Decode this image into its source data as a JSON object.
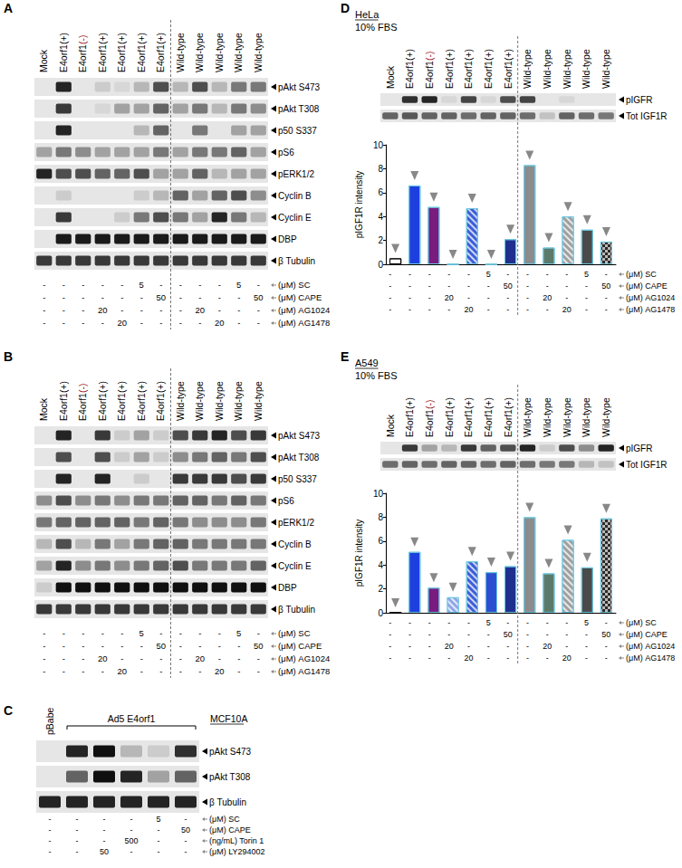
{
  "figure": {
    "panels": [
      {
        "letter": "A",
        "lanes": [
          "Mock",
          "E4orf1(+)",
          "E4orf1(-)",
          "E4orf1(+)",
          "E4orf1(+)",
          "E4orf1(+)",
          "E4orf1(+)",
          "Wild-type",
          "Wild-type",
          "Wild-type",
          "Wild-type",
          "Wild-type"
        ],
        "rows": [
          {
            "label": "pAkt S473",
            "bands": [
              0,
              0.9,
              0,
              0.1,
              0.05,
              0.2,
              0.7,
              0.2,
              0.7,
              0.2,
              0.5,
              0.5
            ]
          },
          {
            "label": "pAkt T308",
            "bands": [
              0,
              0.8,
              0,
              0.05,
              0.3,
              0.3,
              0.6,
              0.3,
              0.5,
              0.2,
              0.5,
              0.4
            ]
          },
          {
            "label": "p50 S337",
            "bands": [
              0,
              0.9,
              0,
              0,
              0,
              0.2,
              0.6,
              0,
              0.5,
              0,
              0.3,
              0.3
            ]
          },
          {
            "label": "pS6",
            "bands": [
              0.3,
              0.5,
              0.4,
              0.3,
              0.3,
              0.3,
              0.5,
              0.3,
              0.5,
              0.5,
              0.6,
              0.3
            ]
          },
          {
            "label": "pERK1/2",
            "bands": [
              0.9,
              0.7,
              0.7,
              0.6,
              0.6,
              0.7,
              0.3,
              0.3,
              0.6,
              0.2,
              0.3,
              0.3
            ]
          },
          {
            "label": "Cyclin B",
            "bands": [
              0,
              0.1,
              0,
              0,
              0,
              0.1,
              0.2,
              0.6,
              0.3,
              0.6,
              0.7,
              0.4
            ]
          },
          {
            "label": "Cyclin E",
            "bands": [
              0,
              0.8,
              0,
              0,
              0.1,
              0.5,
              0.7,
              0.5,
              0.3,
              0.9,
              0.5,
              0.2
            ]
          },
          {
            "label": "DBP",
            "bands": [
              0,
              0.95,
              0.95,
              0.95,
              0.95,
              0.95,
              0.95,
              0.95,
              0.95,
              0.95,
              0.95,
              0.95
            ]
          },
          {
            "label": "β Tubulin",
            "bands": [
              0.8,
              0.8,
              0.8,
              0.8,
              0.8,
              0.8,
              0.8,
              0.8,
              0.8,
              0.8,
              0.8,
              0.8
            ]
          }
        ],
        "treatments": [
          {
            "label": "(μM) SC",
            "values": [
              "-",
              "-",
              "-",
              "-",
              "-",
              "5",
              "-",
              "-",
              "-",
              "-",
              "5",
              "-"
            ]
          },
          {
            "label": "(μM) CAPE",
            "values": [
              "-",
              "-",
              "-",
              "-",
              "-",
              "-",
              "50",
              "-",
              "-",
              "-",
              "-",
              "50"
            ]
          },
          {
            "label": "(μM) AG1024",
            "values": [
              "-",
              "-",
              "-",
              "20",
              "-",
              "-",
              "-",
              "-",
              "20",
              "-",
              "-",
              "-"
            ]
          },
          {
            "label": "(μM) AG1478",
            "values": [
              "-",
              "-",
              "-",
              "-",
              "20",
              "-",
              "-",
              "-",
              "-",
              "20",
              "-",
              "-"
            ]
          }
        ]
      },
      {
        "letter": "B",
        "lanes": [
          "Mock",
          "E4orf1(+)",
          "E4orf1(-)",
          "E4orf1(+)",
          "E4orf1(+)",
          "E4orf1(+)",
          "E4orf1(+)",
          "Wild-type",
          "Wild-type",
          "Wild-type",
          "Wild-type",
          "Wild-type"
        ],
        "rows": [
          {
            "label": "pAkt S473",
            "bands": [
              0,
              0.9,
              0,
              0.8,
              0.1,
              0.3,
              0.1,
              0.7,
              0.8,
              0.9,
              0.7,
              0.8
            ]
          },
          {
            "label": "pAkt T308",
            "bands": [
              0,
              0.7,
              0,
              0.7,
              0.1,
              0.3,
              0.1,
              0.4,
              0.5,
              0.6,
              0.5,
              0.7
            ]
          },
          {
            "label": "p50 S337",
            "bands": [
              0,
              0.9,
              0,
              0.9,
              0,
              0.1,
              0,
              0.8,
              0.8,
              0.8,
              0.7,
              0.8
            ]
          },
          {
            "label": "pS6",
            "bands": [
              0.4,
              0.7,
              0.4,
              0.5,
              0.4,
              0.5,
              0.5,
              0.6,
              0.6,
              0.5,
              0.6,
              0.5
            ]
          },
          {
            "label": "pERK1/2",
            "bands": [
              0.5,
              0.6,
              0.6,
              0.6,
              0.6,
              0.5,
              0.6,
              0.5,
              0.4,
              0.4,
              0.4,
              0.5
            ]
          },
          {
            "label": "Cyclin B",
            "bands": [
              0.2,
              0.7,
              0.2,
              0.5,
              0.3,
              0.5,
              0.6,
              0.6,
              0.5,
              0.5,
              0.5,
              0.5
            ]
          },
          {
            "label": "Cyclin E",
            "bands": [
              0.3,
              0.9,
              0.4,
              0.5,
              0.4,
              0.5,
              0.6,
              0.7,
              0.5,
              0.5,
              0.5,
              0.6
            ]
          },
          {
            "label": "DBP",
            "bands": [
              0.1,
              1,
              1,
              1,
              1,
              1,
              1,
              1,
              1,
              1,
              1,
              1
            ]
          },
          {
            "label": "β Tubulin",
            "bands": [
              0.8,
              0.8,
              0.8,
              0.8,
              0.8,
              0.8,
              0.8,
              0.8,
              0.8,
              0.8,
              0.8,
              0.8
            ]
          }
        ],
        "treatments": [
          {
            "label": "(μM) SC",
            "values": [
              "-",
              "-",
              "-",
              "-",
              "-",
              "5",
              "-",
              "-",
              "-",
              "-",
              "5",
              "-"
            ]
          },
          {
            "label": "(μM) CAPE",
            "values": [
              "-",
              "-",
              "-",
              "-",
              "-",
              "-",
              "50",
              "-",
              "-",
              "-",
              "-",
              "50"
            ]
          },
          {
            "label": "(μM) AG1024",
            "values": [
              "-",
              "-",
              "-",
              "20",
              "-",
              "-",
              "-",
              "-",
              "20",
              "-",
              "-",
              "-"
            ]
          },
          {
            "label": "(μM) AG1478",
            "values": [
              "-",
              "-",
              "-",
              "-",
              "20",
              "-",
              "-",
              "-",
              "-",
              "20",
              "-",
              "-"
            ]
          }
        ]
      },
      {
        "letter": "C",
        "lanes": [
          "pBabe"
        ],
        "bracket": "Ad5 E4orf1",
        "cell_line": "MCF10A",
        "rows": [
          {
            "label": "pAkt S473",
            "bands": [
              0,
              0.9,
              1,
              0.2,
              0.1,
              0.85
            ]
          },
          {
            "label": "pAkt T308",
            "bands": [
              0,
              0.6,
              1,
              0.9,
              0.3,
              0.6
            ]
          },
          {
            "label": "β Tubulin",
            "bands": [
              0.9,
              0.9,
              0.9,
              0.9,
              0.9,
              0.9
            ]
          }
        ],
        "treatments": [
          {
            "label": "(μM) SC",
            "values": [
              "-",
              "-",
              "-",
              "-",
              "5",
              "-"
            ]
          },
          {
            "label": "(μM) CAPE",
            "values": [
              "-",
              "-",
              "-",
              "-",
              "-",
              "50"
            ]
          },
          {
            "label": "(ng/mL) Torin 1",
            "values": [
              "-",
              "-",
              "-",
              "500",
              "-",
              "-"
            ]
          },
          {
            "label": "(μM) LY294002",
            "values": [
              "-",
              "-",
              "50",
              "-",
              "-",
              "-"
            ]
          }
        ]
      }
    ]
  },
  "chart_data": [
    {
      "type": "bar",
      "panel": "D",
      "cell_line": "HeLa",
      "condition": "10% FBS",
      "y_label": "pIGF1R intensity",
      "categories": [
        "Mock",
        "E4orf1(+)",
        "E4orf1(-)",
        "E4orf1(+)",
        "E4orf1(+)",
        "E4orf1(+)",
        "E4orf1(+)",
        "Wild-type",
        "Wild-type",
        "Wild-type",
        "Wild-type",
        "Wild-type"
      ],
      "values": [
        0.5,
        6.6,
        4.8,
        0,
        4.7,
        0,
        2.1,
        8.3,
        1.4,
        4.0,
        2.9,
        1.9
      ],
      "colors": [
        "#ffffff",
        "#1d3fe0",
        "#7a1b7f",
        "#3c5fd8",
        "#3c5fd8",
        "#2b4fd0",
        "#1f2f8f",
        "#8c8c8c",
        "#5c7a6a",
        "#a0a0a0",
        "#4a4a4a",
        "#2a2a2a"
      ],
      "ylim": [
        0,
        10
      ],
      "yticks": [
        0,
        2,
        4,
        6,
        8,
        10
      ],
      "grid": false,
      "tick_labels": "y",
      "blot_rows": [
        {
          "label": "pIGFR",
          "bands": [
            0,
            0.85,
            0.9,
            0.05,
            0.75,
            0.05,
            0.7,
            0.75,
            0,
            0.05,
            0,
            0
          ]
        },
        {
          "label": "Tot IGF1R",
          "bands": [
            0.6,
            0.65,
            0.6,
            0.6,
            0.55,
            0.6,
            0.6,
            0.55,
            0.15,
            0.6,
            0.55,
            0.5
          ]
        }
      ],
      "treatments": [
        {
          "label": "(μM) SC",
          "values": [
            "-",
            "-",
            "-",
            "-",
            "-",
            "5",
            "-",
            "-",
            "-",
            "-",
            "5",
            "-"
          ]
        },
        {
          "label": "(μM) CAPE",
          "values": [
            "-",
            "-",
            "-",
            "-",
            "-",
            "-",
            "50",
            "-",
            "-",
            "-",
            "-",
            "50"
          ]
        },
        {
          "label": "(μM) AG1024",
          "values": [
            "-",
            "-",
            "-",
            "20",
            "-",
            "-",
            "-",
            "-",
            "20",
            "-",
            "-",
            "-"
          ]
        },
        {
          "label": "(μM) AG1478",
          "values": [
            "-",
            "-",
            "-",
            "-",
            "20",
            "-",
            "-",
            "-",
            "-",
            "20",
            "-",
            "-"
          ]
        }
      ]
    },
    {
      "type": "bar",
      "panel": "E",
      "cell_line": "A549",
      "condition": "10% FBS",
      "y_label": "pIGF1R intensity",
      "categories": [
        "Mock",
        "E4orf1(+)",
        "E4orf1(-)",
        "E4orf1(+)",
        "E4orf1(+)",
        "E4orf1(+)",
        "E4orf1(+)",
        "Wild-type",
        "Wild-type",
        "Wild-type",
        "Wild-type",
        "Wild-type"
      ],
      "values": [
        0,
        5.1,
        2.1,
        1.3,
        4.3,
        3.4,
        3.9,
        8.0,
        3.3,
        6.1,
        3.8,
        7.9
      ],
      "colors": [
        "#ffffff",
        "#1d3fe0",
        "#7a1b7f",
        "#8fa6e8",
        "#3c5fd8",
        "#2b4fd0",
        "#1f2f8f",
        "#8c8c8c",
        "#5c7a6a",
        "#a0a0a0",
        "#4a4a4a",
        "#2a2a2a"
      ],
      "ylim": [
        0,
        10
      ],
      "yticks": [
        0,
        2,
        4,
        6,
        8,
        10
      ],
      "grid": false,
      "tick_labels": "y",
      "blot_rows": [
        {
          "label": "pIGFR",
          "bands": [
            0,
            0.8,
            0.3,
            0.2,
            0.8,
            0.6,
            0.7,
            0.9,
            0.1,
            0.7,
            0.4,
            0.9
          ]
        },
        {
          "label": "Tot IGF1R",
          "bands": [
            0.55,
            0.6,
            0.55,
            0.6,
            0.6,
            0.55,
            0.6,
            0.55,
            0.5,
            0.5,
            0.2,
            0.15
          ]
        }
      ],
      "treatments": [
        {
          "label": "(μM) SC",
          "values": [
            "-",
            "-",
            "-",
            "-",
            "-",
            "5",
            "-",
            "-",
            "-",
            "-",
            "5",
            "-"
          ]
        },
        {
          "label": "(μM) CAPE",
          "values": [
            "-",
            "-",
            "-",
            "-",
            "-",
            "-",
            "50",
            "-",
            "-",
            "-",
            "-",
            "50"
          ]
        },
        {
          "label": "(μM) AG1024",
          "values": [
            "-",
            "-",
            "-",
            "20",
            "-",
            "-",
            "-",
            "-",
            "20",
            "-",
            "-",
            "-"
          ]
        },
        {
          "label": "(μM) AG1478",
          "values": [
            "-",
            "-",
            "-",
            "-",
            "20",
            "-",
            "-",
            "-",
            "-",
            "20",
            "-",
            "-"
          ]
        }
      ]
    }
  ]
}
